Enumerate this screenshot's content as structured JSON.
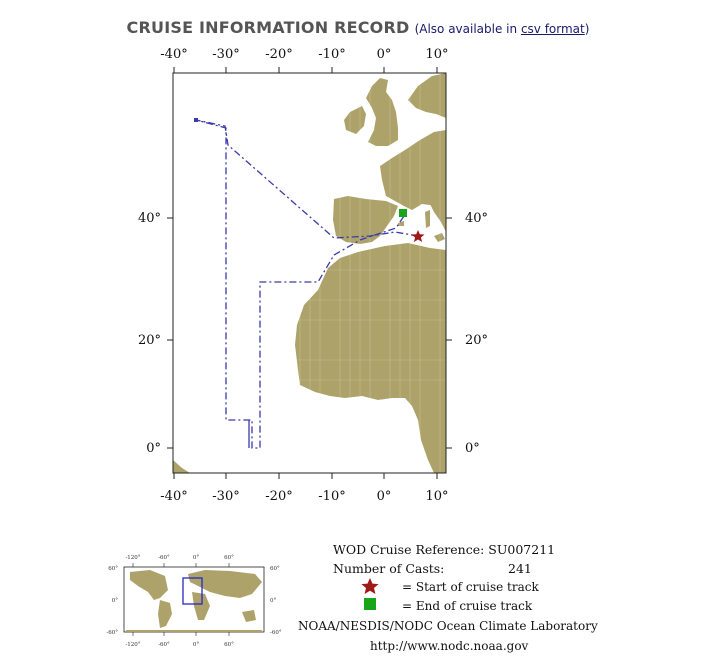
{
  "header": {
    "title": "CRUISE INFORMATION RECORD",
    "also_prefix": "(Also available in ",
    "csv_link": "csv format",
    "also_suffix": ")"
  },
  "map": {
    "lon_labels": [
      "-40°",
      "-30°",
      "-20°",
      "-10°",
      "0°",
      "10°"
    ],
    "lat_labels": [
      "40°",
      "20°",
      "0°"
    ],
    "land_color": "#ADA36A",
    "track_color": "#3A3AAA",
    "start_color": "#A01818",
    "end_color": "#19A519"
  },
  "inset": {
    "lon_labels": [
      "-120°",
      "-60°",
      "0°",
      "60°"
    ],
    "lat_labels": [
      "60°",
      "0°",
      "-60°"
    ]
  },
  "legend": {
    "ref_label": "WOD Cruise Reference: SU007211",
    "casts_label": "Number of Casts:",
    "casts_value": "241",
    "start_label": "= Start of cruise track",
    "end_label": "= End of cruise track",
    "org": "NOAA/NESDIS/NODC Ocean Climate Laboratory",
    "url": "http://www.nodc.noaa.gov"
  }
}
